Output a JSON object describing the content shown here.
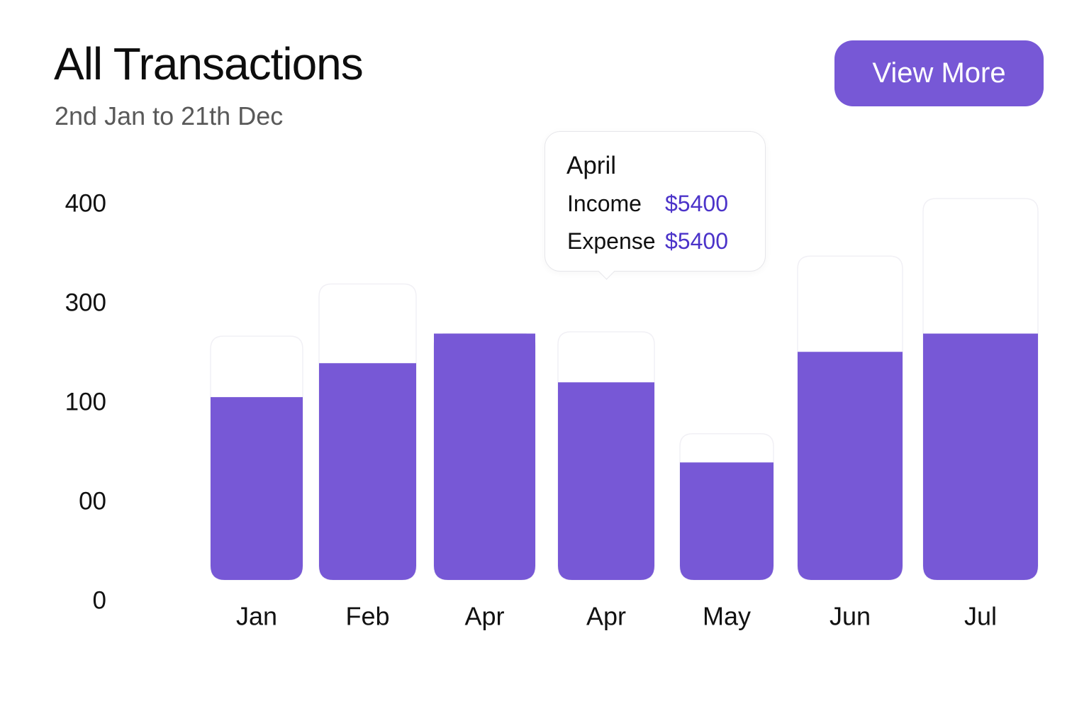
{
  "header": {
    "title": "All Transactions",
    "subtitle": "2nd Jan to 21th Dec",
    "view_more_label": "View More"
  },
  "colors": {
    "accent": "#7758d6",
    "bar": "#7758d6",
    "tooltip_value": "#4b33c9"
  },
  "tooltip": {
    "title": "April",
    "income_label": "Income",
    "income_value": "$5400",
    "expense_label": "Expense",
    "expense_value": "$5400"
  },
  "chart_data": {
    "type": "bar",
    "y_ticks": [
      "0",
      "00",
      "100",
      "300",
      "400"
    ],
    "categories": [
      "Jan",
      "Feb",
      "Apr",
      "Apr",
      "May",
      "Jun",
      "Jul"
    ],
    "series": [
      {
        "values": [
          210,
          249,
          283,
          227,
          135,
          262,
          283
        ]
      }
    ],
    "track_values": [
      280,
      340,
      283,
      285,
      168,
      372,
      438
    ],
    "ylim": [
      0,
      430
    ],
    "grid": false,
    "legend": "none"
  }
}
